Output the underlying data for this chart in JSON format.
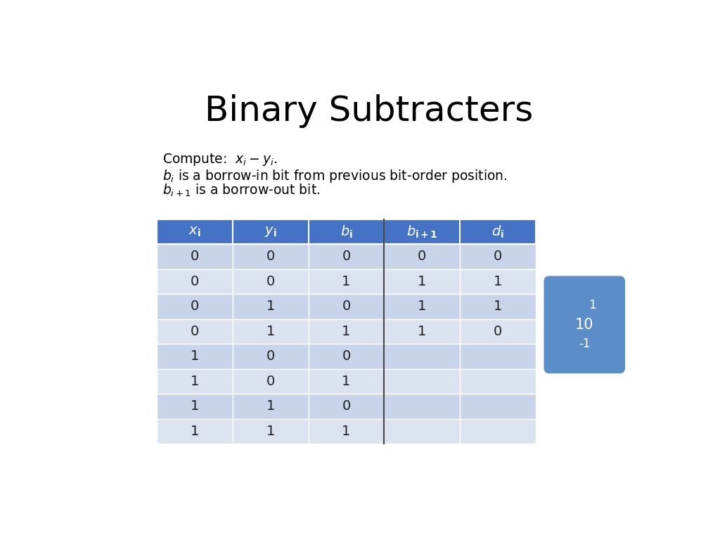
{
  "title": "Binary Subtracters",
  "title_fontsize": 36,
  "header_labels": [
    "$\\mathbf{\\mathit{x}_i}$",
    "$\\mathbf{\\mathit{y}_i}$",
    "$\\mathbf{\\mathit{b}_i}$",
    "$\\mathbf{\\mathit{b}_{i+1}}$",
    "$\\mathbf{\\mathit{d}_i}$"
  ],
  "header_bg": "#4472C4",
  "header_fg": "#FFFFFF",
  "row_data": [
    [
      "0",
      "0",
      "0",
      "0",
      "0"
    ],
    [
      "0",
      "0",
      "1",
      "1",
      "1"
    ],
    [
      "0",
      "1",
      "0",
      "1",
      "1"
    ],
    [
      "0",
      "1",
      "1",
      "1",
      "0"
    ],
    [
      "1",
      "0",
      "0",
      "",
      ""
    ],
    [
      "1",
      "0",
      "1",
      "",
      ""
    ],
    [
      "1",
      "1",
      "0",
      "",
      ""
    ],
    [
      "1",
      "1",
      "1",
      "",
      ""
    ]
  ],
  "row_colors_even": "#C9D4EA",
  "row_colors_odd": "#DCE3F0",
  "cell_text_color": "#1F1F1F",
  "divider_color": "#444444",
  "badge_text": [
    "1",
    "10",
    "-1"
  ],
  "badge_bg": "#5B8EC8",
  "badge_fg": "#FFFFFF"
}
